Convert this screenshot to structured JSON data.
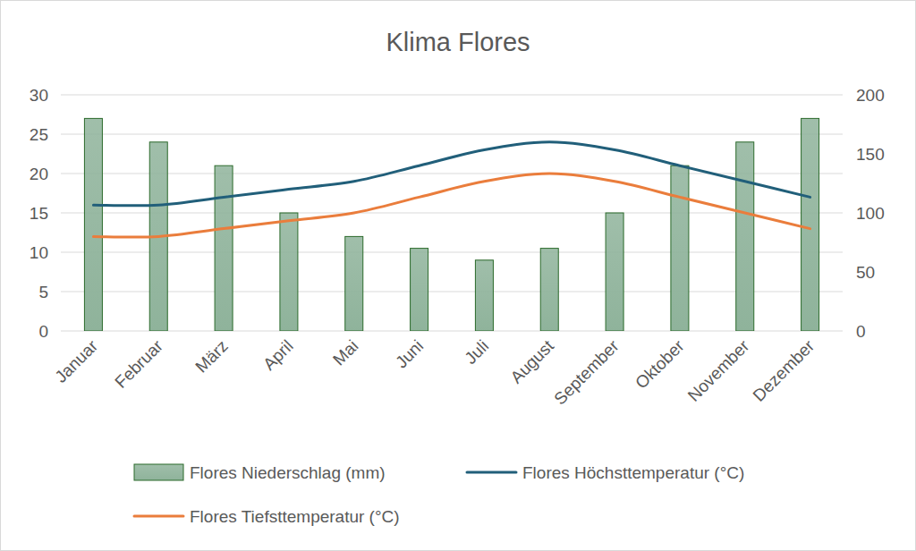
{
  "chart_data": {
    "type": "bar",
    "title": "Klima Flores",
    "categories": [
      "Januar",
      "Februar",
      "März",
      "April",
      "Mai",
      "Juni",
      "Juli",
      "August",
      "September",
      "Oktober",
      "November",
      "Dezember"
    ],
    "series": [
      {
        "name": "Flores Niederschlag (mm)",
        "type": "bar",
        "axis": "y2",
        "color": "#8fb39b",
        "values": [
          180,
          160,
          140,
          100,
          80,
          70,
          60,
          70,
          100,
          140,
          160,
          180
        ]
      },
      {
        "name": "Flores Höchsttemperatur (°C)",
        "type": "line",
        "color": "#215f7a",
        "values": [
          16,
          16,
          17,
          18,
          19,
          21,
          23,
          24,
          23,
          21,
          19,
          17
        ]
      },
      {
        "name": "Flores Tiefsttemperatur (°C)",
        "type": "line",
        "color": "#ea7d3c",
        "values": [
          12,
          12,
          13,
          14,
          15,
          17,
          19,
          20,
          19,
          17,
          15,
          13
        ]
      }
    ],
    "ylim": [
      0,
      30
    ],
    "yticks": [
      0,
      5,
      10,
      15,
      20,
      25,
      30
    ],
    "y2lim": [
      0,
      200
    ],
    "y2ticks": [
      0,
      50,
      100,
      150,
      200
    ],
    "grid": true,
    "legend": "bottom"
  }
}
